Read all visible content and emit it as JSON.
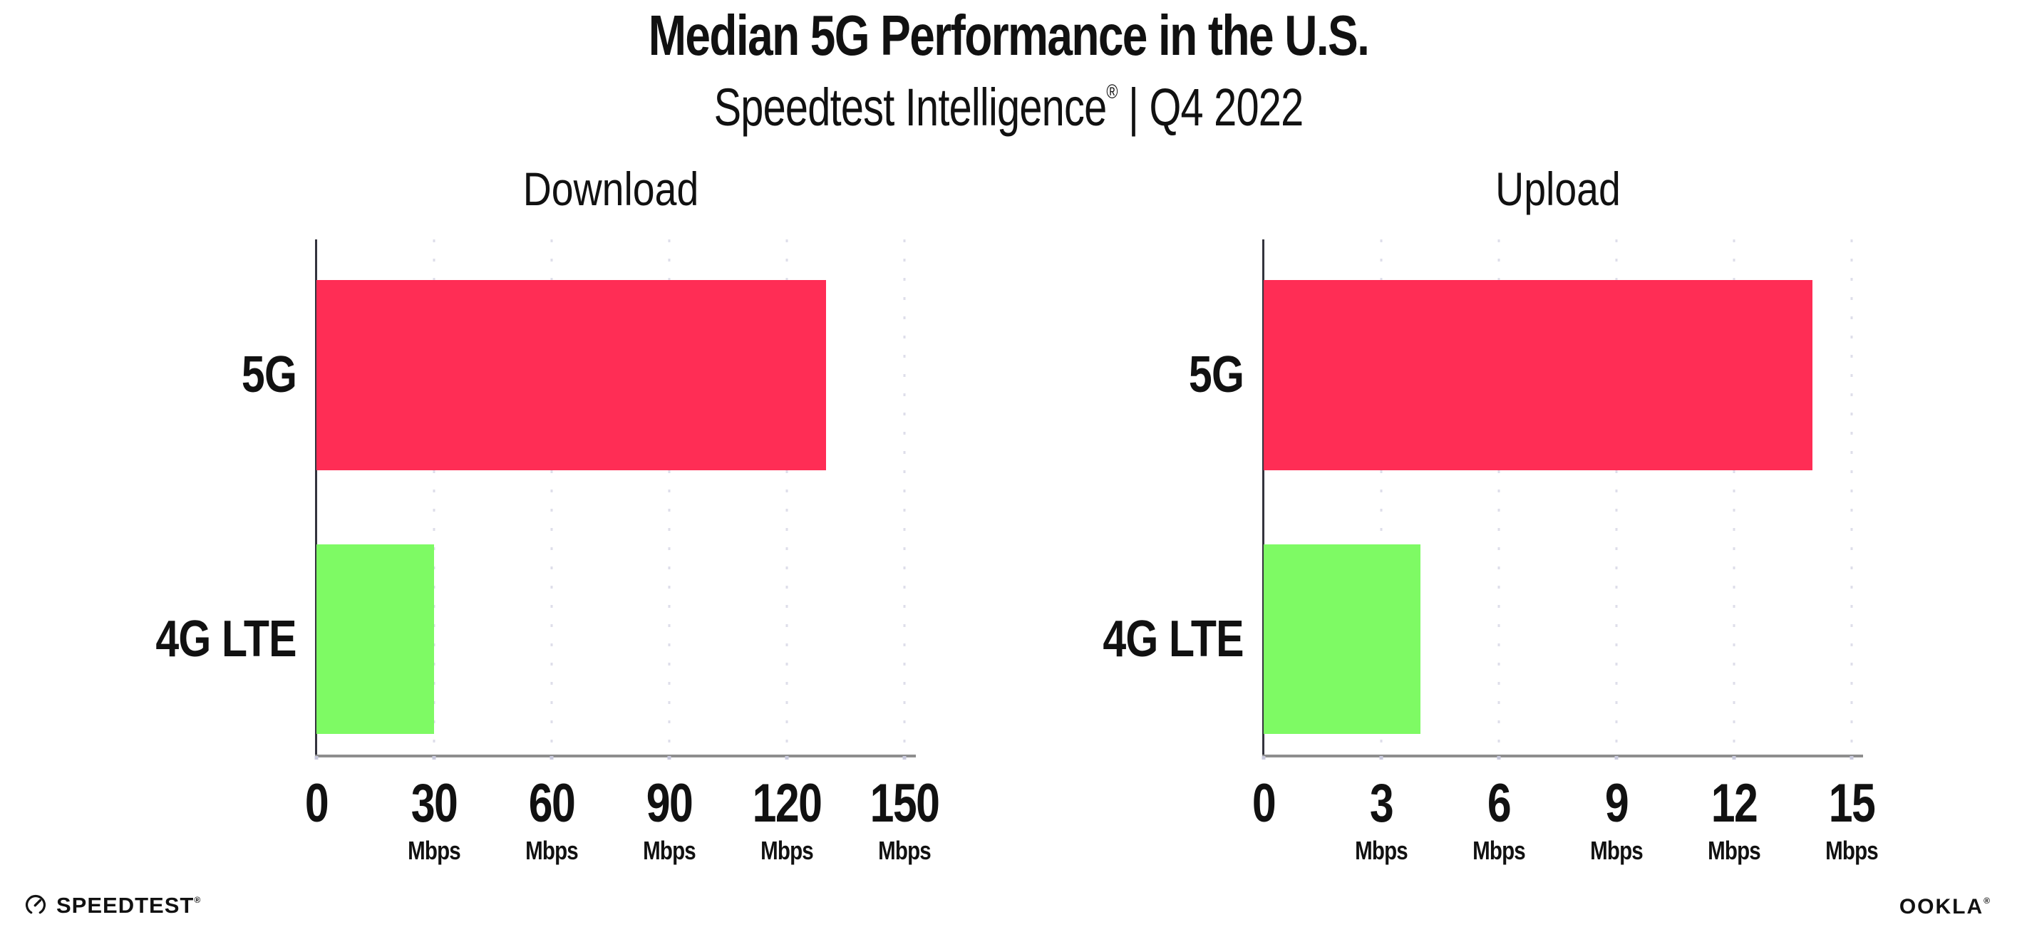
{
  "page": {
    "title": "Median 5G Performance in the U.S.",
    "subtitle": {
      "brand": "Speedtest Intelligence",
      "reg_mark": "®",
      "separator": " | ",
      "period": "Q4 2022"
    }
  },
  "footer": {
    "speedtest_wordmark": "SPEEDTEST",
    "speedtest_mark": "®",
    "ookla_wordmark": "OOKLA",
    "ookla_mark": "®"
  },
  "colors": {
    "bar_5g": "#FF2D55",
    "bar_4g_lte": "#7EFA64",
    "grid_dot": "#DEDEEA",
    "tick_dot": "#C9CADD",
    "axis_y": "#33333D",
    "axis_x": "#8E8E8E",
    "text": "#111111"
  },
  "chart_data": [
    {
      "type": "bar",
      "orientation": "horizontal",
      "title": "Download",
      "categories": [
        "5G",
        "4G LTE"
      ],
      "values": [
        130,
        30
      ],
      "unit": "Mbps",
      "xlabel": "",
      "ylabel": "",
      "xlim": [
        0,
        150
      ],
      "xticks": [
        0,
        30,
        60,
        90,
        120,
        150
      ],
      "bar_colors": [
        "#FF2D55",
        "#7EFA64"
      ],
      "grid": "vertical-dotted",
      "legend": "none"
    },
    {
      "type": "bar",
      "orientation": "horizontal",
      "title": "Upload",
      "categories": [
        "5G",
        "4G LTE"
      ],
      "values": [
        14,
        4
      ],
      "unit": "Mbps",
      "xlabel": "",
      "ylabel": "",
      "xlim": [
        0,
        15
      ],
      "xticks": [
        0,
        3,
        6,
        9,
        12,
        15
      ],
      "bar_colors": [
        "#FF2D55",
        "#7EFA64"
      ],
      "grid": "vertical-dotted",
      "legend": "none"
    }
  ]
}
